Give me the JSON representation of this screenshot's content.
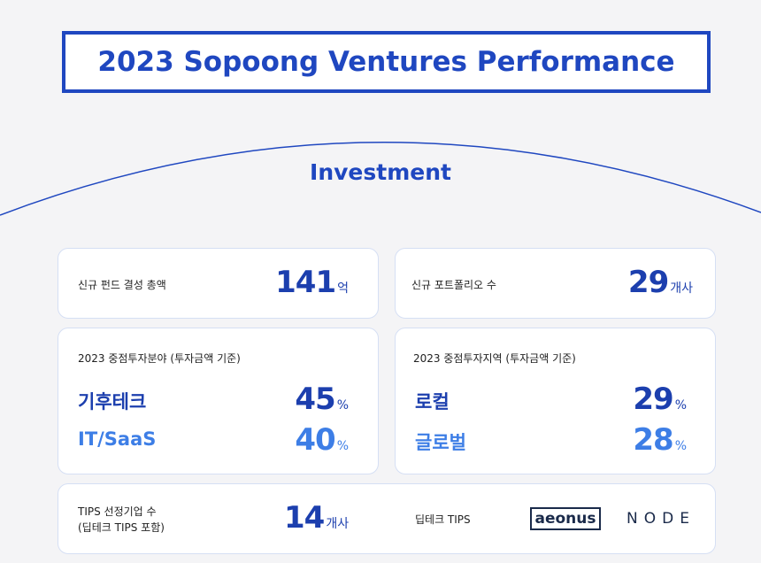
{
  "header": {
    "title": "2023 Sopoong Ventures Performance"
  },
  "section": {
    "title": "Investment"
  },
  "cards": [
    {
      "label": "신규 펀드 결성 총액",
      "value": 141,
      "unit": "억"
    },
    {
      "label": "신규 포트폴리오 수",
      "value": 29,
      "unit": "개사"
    },
    {
      "label": "2023 중점투자분야 (투자금액 기준)",
      "items": [
        {
          "name": "기후테크",
          "value": 45,
          "unit": "%"
        },
        {
          "name": "IT/SaaS",
          "value": 40,
          "unit": "%"
        }
      ]
    },
    {
      "label": "2023 중점투자지역 (투자금액 기준)",
      "items": [
        {
          "name": "로컬",
          "value": 29,
          "unit": "%"
        },
        {
          "name": "글로벌",
          "value": 28,
          "unit": "%"
        }
      ]
    },
    {
      "label": "TIPS 선정기업 수",
      "sublabel": "(딥테크 TIPS 포함)",
      "value": 14,
      "unit": "개사",
      "tips_label": "딥테크 TIPS",
      "logos": [
        "aeonus",
        "NODE"
      ]
    }
  ]
}
